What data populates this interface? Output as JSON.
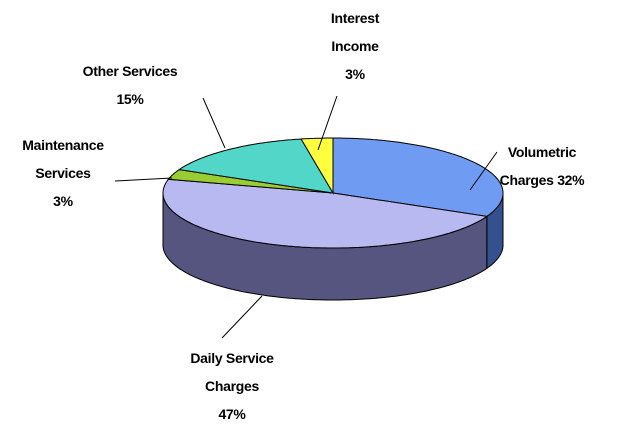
{
  "chart_data": {
    "type": "pie3d",
    "categories": [
      "Volumetric Charges",
      "Daily Service Charges",
      "Maintenance Services",
      "Other Services",
      "Interest Income"
    ],
    "values": [
      32,
      47,
      3,
      15,
      3
    ],
    "value_labels": [
      "32%",
      "47%",
      "3%",
      "15%",
      "3%"
    ],
    "colors": [
      "#6f9cf2",
      "#b9b9f2",
      "#9acd32",
      "#52d6c8",
      "#ffff40"
    ],
    "side_colors": [
      "#34508f",
      "#55557f",
      "#5a7a1e",
      "#2a7a72",
      "#9a9a20"
    ]
  }
}
